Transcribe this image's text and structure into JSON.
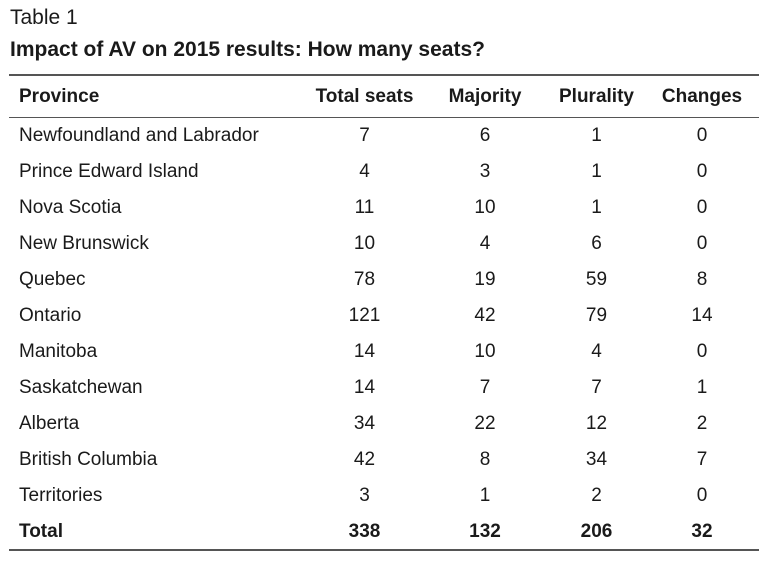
{
  "caption": {
    "label": "Table 1",
    "title": "Impact of AV on 2015 results: How many seats?"
  },
  "columns": [
    "Province",
    "Total seats",
    "Majority",
    "Plurality",
    "Changes"
  ],
  "rows": [
    [
      "Newfoundland and Labrador",
      "7",
      "6",
      "1",
      "0"
    ],
    [
      "Prince Edward Island",
      "4",
      "3",
      "1",
      "0"
    ],
    [
      "Nova Scotia",
      "11",
      "10",
      "1",
      "0"
    ],
    [
      "New Brunswick",
      "10",
      "4",
      "6",
      "0"
    ],
    [
      "Quebec",
      "78",
      "19",
      "59",
      "8"
    ],
    [
      "Ontario",
      "121",
      "42",
      "79",
      "14"
    ],
    [
      "Manitoba",
      "14",
      "10",
      "4",
      "0"
    ],
    [
      "Saskatchewan",
      "14",
      "7",
      "7",
      "1"
    ],
    [
      "Alberta",
      "34",
      "22",
      "12",
      "2"
    ],
    [
      "British Columbia",
      "42",
      "8",
      "34",
      "7"
    ],
    [
      "Territories",
      "3",
      "1",
      "2",
      "0"
    ]
  ],
  "total": [
    "Total",
    "338",
    "132",
    "206",
    "32"
  ]
}
